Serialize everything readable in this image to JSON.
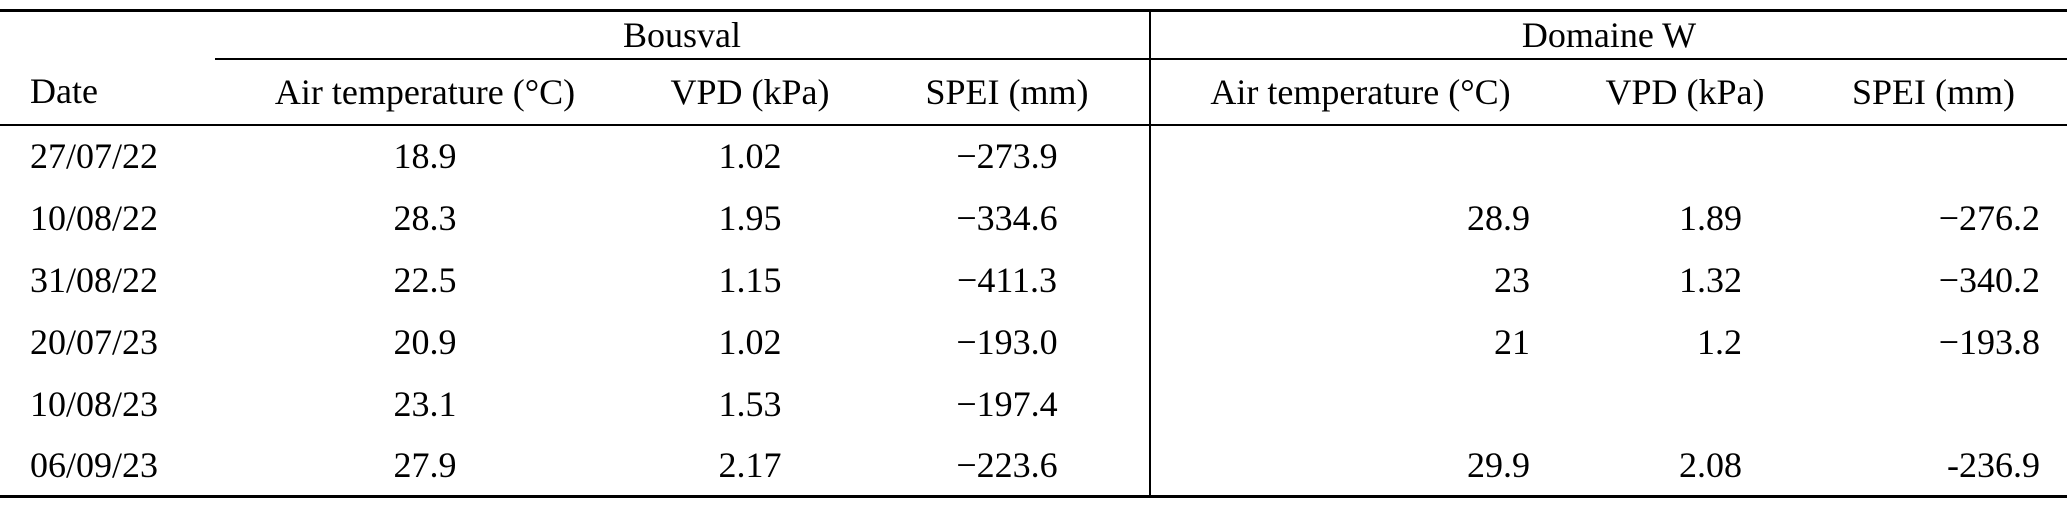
{
  "page": {
    "background": "#ffffff",
    "text_color": "#000000",
    "rule_color": "#000000"
  },
  "table": {
    "groups": [
      {
        "label": "Bousval"
      },
      {
        "label": "Domaine W"
      }
    ],
    "columns": {
      "date": "Date",
      "air": "Air temperature (°C)",
      "vpd": "VPD (kPa)",
      "spei": "SPEI (mm)"
    },
    "rows": [
      {
        "date": "27/07/22",
        "b_air": "18.9",
        "b_vpd": "1.02",
        "b_spei": "−273.9",
        "d_air": "",
        "d_vpd": "",
        "d_spei": ""
      },
      {
        "date": "10/08/22",
        "b_air": "28.3",
        "b_vpd": "1.95",
        "b_spei": "−334.6",
        "d_air": "28.9",
        "d_vpd": "1.89",
        "d_spei": "−276.2"
      },
      {
        "date": "31/08/22",
        "b_air": "22.5",
        "b_vpd": "1.15",
        "b_spei": "−411.3",
        "d_air": "23",
        "d_vpd": "1.32",
        "d_spei": "−340.2"
      },
      {
        "date": "20/07/23",
        "b_air": "20.9",
        "b_vpd": "1.02",
        "b_spei": "−193.0",
        "d_air": "21",
        "d_vpd": "1.2",
        "d_spei": "−193.8"
      },
      {
        "date": "10/08/23",
        "b_air": "23.1",
        "b_vpd": "1.53",
        "b_spei": "−197.4",
        "d_air": "",
        "d_vpd": "",
        "d_spei": ""
      },
      {
        "date": "06/09/23",
        "b_air": "27.9",
        "b_vpd": "2.17",
        "b_spei": "−223.6",
        "d_air": "29.9",
        "d_vpd": "2.08",
        "d_spei": "-236.9"
      }
    ]
  }
}
